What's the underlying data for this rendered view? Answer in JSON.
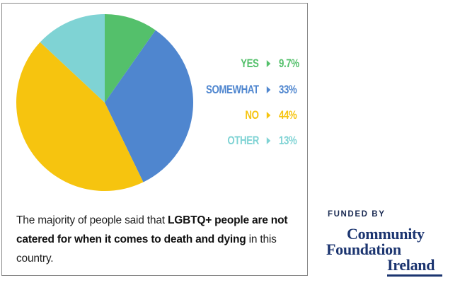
{
  "chart_data": {
    "type": "pie",
    "slices": [
      {
        "label": "YES",
        "value": 9.7,
        "display": "9.7%",
        "color": "#54c06b"
      },
      {
        "label": "SOMEWHAT",
        "value": 33,
        "display": "33%",
        "color": "#4f86cf"
      },
      {
        "label": "NO",
        "value": 44,
        "display": "44%",
        "color": "#f6c40f"
      },
      {
        "label": "OTHER",
        "value": 13,
        "display": "13%",
        "color": "#7fd3d4"
      }
    ],
    "start": "top",
    "direction": "clockwise",
    "legend_position": "right"
  },
  "caption": {
    "part1": "The majority of people said that ",
    "bold1": "LGBTQ+ people are not catered for when it comes to death and dying",
    "part2": " in this country."
  },
  "funder": {
    "label": "FUNDED BY",
    "logo_lines": [
      "Community",
      "Foundation",
      "Ireland"
    ],
    "logo_color": "#1c3570"
  }
}
